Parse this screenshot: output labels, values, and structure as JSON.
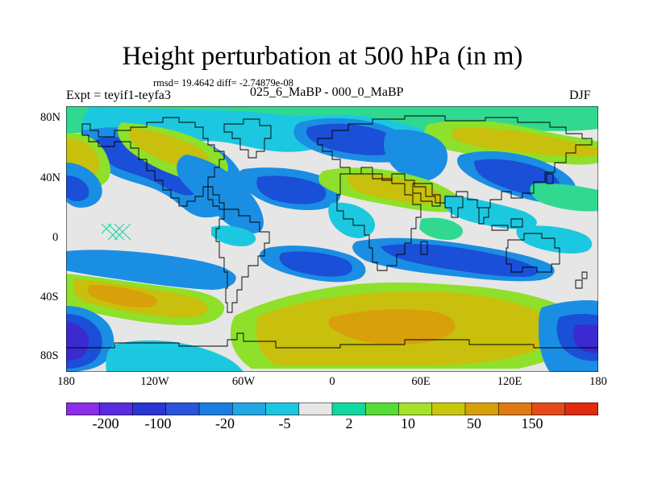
{
  "title": "Height perturbation at 500 hPa (in m)",
  "stats": "rmsd= 19.4642 diff= -2.74879e-08",
  "experiment": "Expt = teyif1-teyfa3",
  "period": "025_6_MaBP - 000_0_MaBP",
  "season": "DJF",
  "axes": {
    "lat_labels": [
      "80N",
      "40N",
      "0",
      "40S",
      "80S"
    ],
    "lon_labels": [
      "180",
      "120W",
      "60W",
      "0",
      "60E",
      "120E",
      "180"
    ]
  },
  "colorbar": {
    "colors": [
      "#8a2ee8",
      "#5a2ae0",
      "#2a35d6",
      "#2a55d8",
      "#1a7ee0",
      "#20a6e3",
      "#1cc8e0",
      "#e6e6e6",
      "#10d8a0",
      "#55dd35",
      "#a6e22a",
      "#c8c80a",
      "#d6a00a",
      "#e07a12",
      "#e54a1a",
      "#e22a10"
    ],
    "labels": [
      "-200",
      "-100",
      "-20",
      "-5",
      "2",
      "10",
      "50",
      "150"
    ]
  },
  "field_colors": {
    "background": "#e6e6e6",
    "strong_negative": "#1a4fd8",
    "moderate_negative": "#1a8ee2",
    "weak_negative": "#1cc8e0",
    "weak_positive": "#30d890",
    "moderate_positive": "#8ee02a",
    "strong_positive": "#c8c00c",
    "peak_positive": "#d8a00a",
    "extreme_negative": "#3a2ad0",
    "coast": "#000000"
  }
}
